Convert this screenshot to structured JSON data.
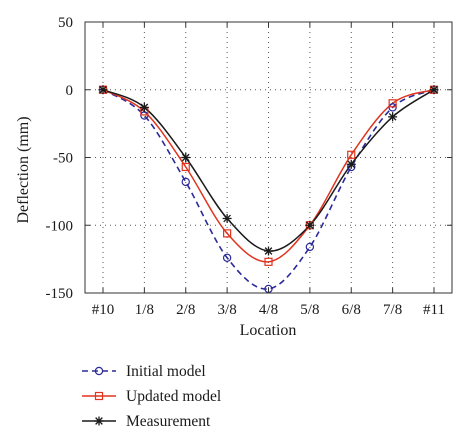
{
  "chart_data": {
    "type": "line",
    "xlabel": "Location",
    "ylabel": "Deflection (mm)",
    "categories": [
      "#10",
      "1/8",
      "2/8",
      "3/8",
      "4/8",
      "5/8",
      "6/8",
      "7/8",
      "#11"
    ],
    "ylim": [
      -150,
      50
    ],
    "yticks": [
      50,
      0,
      -50,
      -100,
      -150
    ],
    "grid": true,
    "legend_position": "bottom",
    "series": [
      {
        "name": "Initial model",
        "color": "#2a2a9a",
        "line": "dashed",
        "marker": "circle",
        "values": [
          0,
          -19,
          -68,
          -124,
          -147,
          -116,
          -57,
          -13,
          0
        ]
      },
      {
        "name": "Updated model",
        "color": "#e0341e",
        "line": "solid",
        "marker": "square",
        "values": [
          0,
          -16,
          -57,
          -106,
          -127,
          -100,
          -48,
          -10,
          0
        ]
      },
      {
        "name": "Measurement",
        "color": "#1a1a1a",
        "line": "solid",
        "marker": "asterisk",
        "values": [
          0,
          -13,
          -50,
          -95,
          -119,
          -100,
          -55,
          -20,
          0
        ]
      }
    ]
  }
}
